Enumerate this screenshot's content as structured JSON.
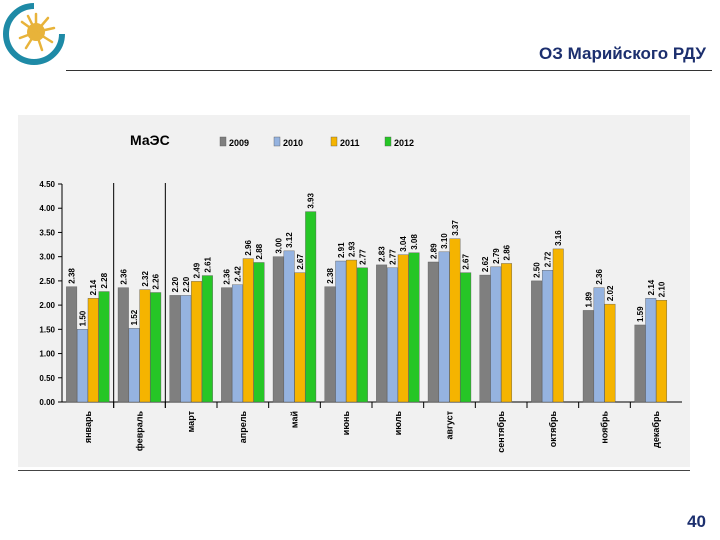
{
  "slide": {
    "title": "ОЗ Марийского РДУ",
    "page_number": "40"
  },
  "colors": {
    "2009": "#7f7f7f",
    "2010": "#95b3e0",
    "2011": "#f5b400",
    "2012": "#26c626",
    "title": "#1c2f6e"
  },
  "chart_data": {
    "type": "bar",
    "title": "МаЭС",
    "categories": [
      "январь",
      "февраль",
      "март",
      "апрель",
      "май",
      "июнь",
      "июль",
      "август",
      "сентябрь",
      "октябрь",
      "ноябрь",
      "декабрь"
    ],
    "series": [
      {
        "name": "2009",
        "values": [
          2.38,
          2.36,
          2.2,
          2.36,
          3.0,
          2.38,
          2.83,
          2.89,
          2.62,
          2.5,
          1.89,
          1.59
        ]
      },
      {
        "name": "2010",
        "values": [
          1.5,
          1.52,
          2.2,
          2.42,
          3.12,
          2.91,
          2.77,
          3.1,
          2.79,
          2.72,
          2.36,
          2.14
        ]
      },
      {
        "name": "2011",
        "values": [
          2.14,
          2.32,
          2.49,
          2.96,
          2.67,
          2.93,
          3.04,
          3.37,
          2.86,
          3.16,
          2.02,
          2.1
        ]
      },
      {
        "name": "2012",
        "values": [
          2.28,
          2.26,
          2.61,
          2.88,
          3.93,
          2.77,
          3.08,
          2.67,
          null,
          null,
          null,
          null
        ]
      }
    ],
    "ylim": [
      0,
      4.5
    ],
    "yticks": [
      "0.00",
      "0.50",
      "1.00",
      "1.50",
      "2.00",
      "2.50",
      "3.00",
      "3.50",
      "4.00",
      "4.50"
    ],
    "legend_position": "top",
    "grid": false
  }
}
